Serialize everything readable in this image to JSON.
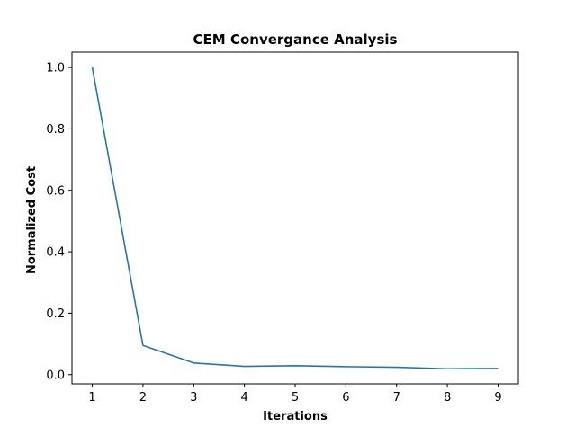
{
  "chart_data": {
    "type": "line",
    "title": "CEM Convergance Analysis",
    "xlabel": "Iterations",
    "ylabel": "Normalized Cost",
    "x": [
      1,
      2,
      3,
      4,
      5,
      6,
      7,
      8,
      9
    ],
    "series": [
      {
        "values": [
          1.0,
          0.095,
          0.038,
          0.027,
          0.029,
          0.026,
          0.024,
          0.019,
          0.02
        ],
        "color": "#1f77b4"
      }
    ],
    "xlim": [
      0.6,
      9.4
    ],
    "ylim": [
      -0.03,
      1.05
    ],
    "xticks": [
      "1",
      "2",
      "3",
      "4",
      "5",
      "6",
      "7",
      "8",
      "9"
    ],
    "yticks": [
      "0.0",
      "0.2",
      "0.4",
      "0.6",
      "0.8",
      "1.0"
    ],
    "grid": false,
    "legend": "none"
  }
}
